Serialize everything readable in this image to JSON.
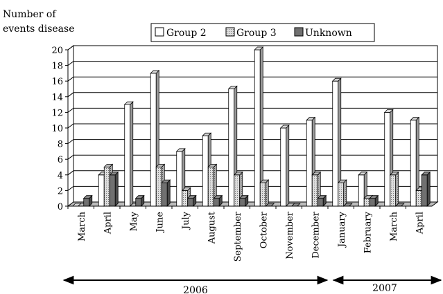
{
  "chart_data": {
    "type": "bar",
    "ylabel": "Number of events disease",
    "ylabel_lines": [
      "Number of",
      "events disease"
    ],
    "ylim": [
      0,
      20
    ],
    "yticks": [
      0,
      2,
      4,
      6,
      8,
      10,
      12,
      14,
      16,
      18,
      20
    ],
    "grid": true,
    "legend_position": "top",
    "categories": [
      "March",
      "April",
      "May",
      "June",
      "July",
      "August",
      "September",
      "October",
      "November",
      "December",
      "January",
      "February",
      "March",
      "April"
    ],
    "series": [
      {
        "name": "Group 2",
        "color": "#ffffff",
        "values": [
          0,
          4,
          13,
          17,
          7,
          9,
          15,
          20,
          10,
          11,
          16,
          4,
          12,
          11
        ]
      },
      {
        "name": "Group 3",
        "color": "#c8c8c8",
        "values": [
          0,
          5,
          0,
          5,
          2,
          5,
          4,
          3,
          0,
          4,
          3,
          1,
          4,
          2
        ]
      },
      {
        "name": "Unknown",
        "color": "#707070",
        "values": [
          1,
          4,
          1,
          3,
          1,
          1,
          1,
          0,
          0,
          1,
          0,
          1,
          0,
          4
        ]
      }
    ],
    "year_groups": [
      {
        "label": "2006"
      },
      {
        "label": "2007"
      }
    ]
  }
}
